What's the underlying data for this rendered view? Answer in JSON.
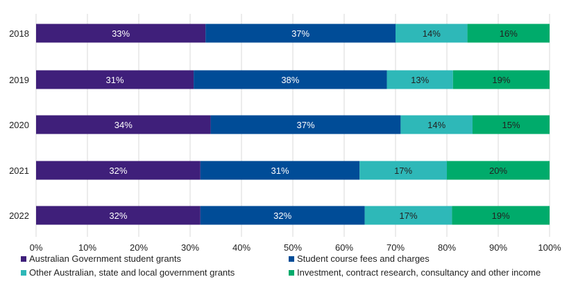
{
  "chart_data": {
    "type": "bar",
    "orientation": "horizontal",
    "stacked": true,
    "categories": [
      "2018",
      "2019",
      "2020",
      "2021",
      "2022"
    ],
    "series": [
      {
        "name": "Australian Government student grants",
        "color": "#3f1f7a",
        "values": [
          33,
          31,
          34,
          32,
          32
        ]
      },
      {
        "name": "Student course fees and charges",
        "color": "#004c97",
        "values": [
          37,
          38,
          37,
          31,
          32
        ]
      },
      {
        "name": "Other Australian, state and local government grants",
        "color": "#2eb8b8",
        "values": [
          14,
          13,
          14,
          17,
          17
        ]
      },
      {
        "name": "Investment, contract research, consultancy and other income",
        "color": "#00ab6b",
        "values": [
          16,
          19,
          15,
          20,
          19
        ]
      }
    ],
    "data_label_suffix": "%",
    "xlim": [
      0,
      100
    ],
    "xticks": [
      "0%",
      "10%",
      "20%",
      "30%",
      "40%",
      "50%",
      "60%",
      "70%",
      "80%",
      "90%",
      "100%"
    ],
    "grid": "vertical",
    "legend_position": "bottom",
    "title": "",
    "xlabel": "",
    "ylabel": ""
  }
}
